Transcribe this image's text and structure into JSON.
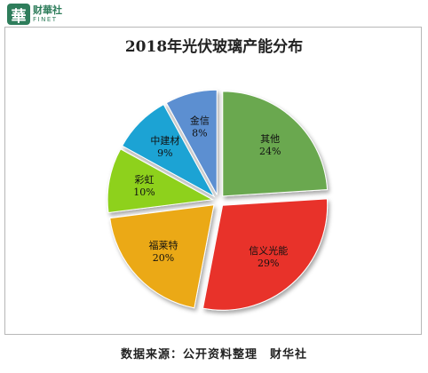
{
  "logo": {
    "badge": "華",
    "cn": "财華社",
    "en": "FINET"
  },
  "chart_data": {
    "type": "pie",
    "title": "2018年光伏玻璃产能分布",
    "slices": [
      {
        "label": "其他",
        "value": 24,
        "display": "24%",
        "color": "#6aa84f"
      },
      {
        "label": "信义光能",
        "value": 29,
        "display": "29%",
        "color": "#e8312a"
      },
      {
        "label": "福莱特",
        "value": 20,
        "display": "20%",
        "color": "#eba919"
      },
      {
        "label": "彩虹",
        "value": 10,
        "display": "10%",
        "color": "#8ed11f"
      },
      {
        "label": "中建材",
        "value": 9,
        "display": "9%",
        "color": "#1fa3d4"
      },
      {
        "label": "金信",
        "value": 8,
        "display": "8%",
        "color": "#5b8fd1"
      }
    ],
    "start_angle_deg": 0,
    "direction": "clockwise",
    "exploded": true
  },
  "source": "数据来源：公开资料整理　财华社"
}
